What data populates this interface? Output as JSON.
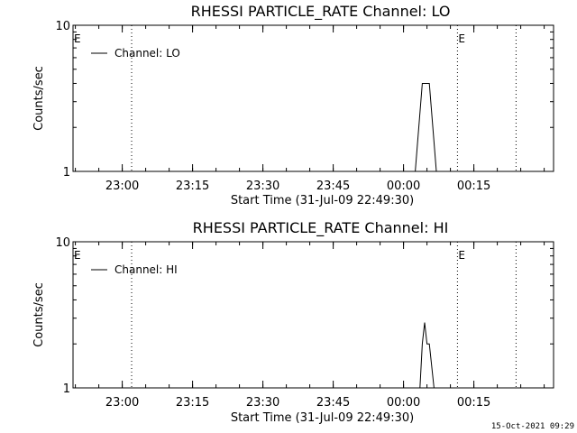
{
  "chart_data": [
    {
      "type": "line",
      "title": "RHESSI PARTICLE_RATE Channel: LO",
      "xlabel": "Start Time (31-Jul-09 22:49:30)",
      "ylabel": "Counts/sec",
      "yscale": "log",
      "ylim": [
        1,
        10
      ],
      "y_tick_labels": [
        "1",
        "10"
      ],
      "xlim": [
        "22:49:30",
        "00:32:00"
      ],
      "x_tick_labels": [
        "23:00",
        "23:15",
        "23:30",
        "23:45",
        "00:00",
        "00:15"
      ],
      "legend": {
        "position": "top-left",
        "entries": [
          "Channel: LO"
        ]
      },
      "markers": [
        {
          "time": "22:49:30",
          "label": "E"
        },
        {
          "time": "23:02:00",
          "label": ""
        },
        {
          "time": "00:11:30",
          "label": "E"
        },
        {
          "time": "00:24:00",
          "label": ""
        }
      ],
      "series": [
        {
          "name": "Channel: LO",
          "points": [
            [
              "00:02:30",
              1.0
            ],
            [
              "00:04:00",
              4.0
            ],
            [
              "00:05:30",
              4.0
            ],
            [
              "00:07:00",
              1.0
            ]
          ]
        }
      ]
    },
    {
      "type": "line",
      "title": "RHESSI PARTICLE_RATE Channel: HI",
      "xlabel": "Start Time (31-Jul-09 22:49:30)",
      "ylabel": "Counts/sec",
      "yscale": "log",
      "ylim": [
        1,
        10
      ],
      "y_tick_labels": [
        "1",
        "10"
      ],
      "xlim": [
        "22:49:30",
        "00:32:00"
      ],
      "x_tick_labels": [
        "23:00",
        "23:15",
        "23:30",
        "23:45",
        "00:00",
        "00:15"
      ],
      "legend": {
        "position": "top-left",
        "entries": [
          "Channel: HI"
        ]
      },
      "markers": [
        {
          "time": "22:49:30",
          "label": "E"
        },
        {
          "time": "23:02:00",
          "label": ""
        },
        {
          "time": "00:11:30",
          "label": "E"
        },
        {
          "time": "00:24:00",
          "label": ""
        }
      ],
      "series": [
        {
          "name": "Channel: HI",
          "points": [
            [
              "00:03:30",
              1.0
            ],
            [
              "00:04:00",
              2.0
            ],
            [
              "00:04:30",
              2.8
            ],
            [
              "00:05:00",
              2.0
            ],
            [
              "00:05:30",
              2.0
            ],
            [
              "00:06:30",
              1.0
            ]
          ]
        }
      ]
    }
  ],
  "footer": {
    "date_stamp": "15-Oct-2021 09:29"
  }
}
